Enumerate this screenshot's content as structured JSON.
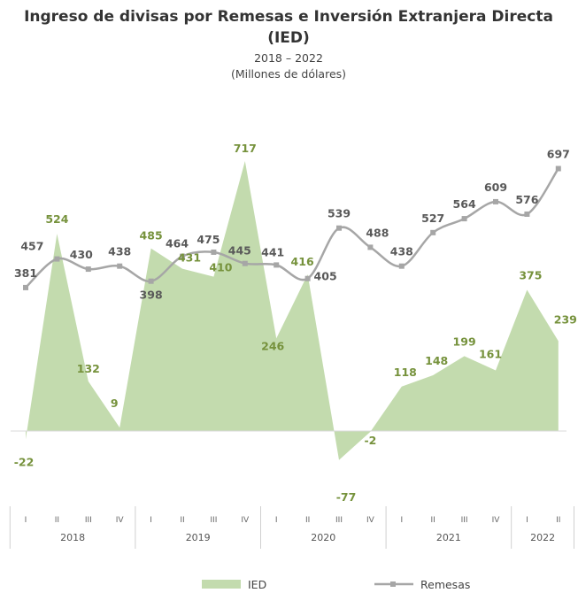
{
  "chart_data": {
    "type": "area",
    "title": "Ingreso de divisas por Remesas e Inversión Extranjera Directa (IED)",
    "subtitle": "2018 – 2022",
    "units": "(Millones de dólares)",
    "categories": [
      {
        "quarter": "I",
        "year": "2018"
      },
      {
        "quarter": "II",
        "year": "2018"
      },
      {
        "quarter": "III",
        "year": "2018"
      },
      {
        "quarter": "IV",
        "year": "2018"
      },
      {
        "quarter": "I",
        "year": "2019"
      },
      {
        "quarter": "II",
        "year": "2019"
      },
      {
        "quarter": "III",
        "year": "2019"
      },
      {
        "quarter": "IV",
        "year": "2019"
      },
      {
        "quarter": "I",
        "year": "2020"
      },
      {
        "quarter": "II",
        "year": "2020"
      },
      {
        "quarter": "III",
        "year": "2020"
      },
      {
        "quarter": "IV",
        "year": "2020"
      },
      {
        "quarter": "I",
        "year": "2021"
      },
      {
        "quarter": "II",
        "year": "2021"
      },
      {
        "quarter": "III",
        "year": "2021"
      },
      {
        "quarter": "IV",
        "year": "2021"
      },
      {
        "quarter": "I",
        "year": "2022"
      },
      {
        "quarter": "II",
        "year": "2022"
      }
    ],
    "years": [
      "2018",
      "2019",
      "2020",
      "2021",
      "2022"
    ],
    "series": [
      {
        "name": "IED",
        "type": "area",
        "color": "#c3dbae",
        "label_color": "#76923c",
        "values": [
          -22,
          524,
          132,
          9,
          485,
          431,
          410,
          717,
          246,
          416,
          -77,
          -2,
          118,
          148,
          199,
          161,
          375,
          239
        ]
      },
      {
        "name": "Remesas",
        "type": "line",
        "color": "#a6a6a6",
        "label_color": "#595959",
        "values": [
          381,
          457,
          430,
          438,
          398,
          464,
          475,
          445,
          441,
          405,
          539,
          488,
          438,
          527,
          564,
          609,
          576,
          697
        ]
      }
    ],
    "ylim": [
      -100,
      750
    ],
    "grid": false,
    "legend_position": "bottom"
  }
}
